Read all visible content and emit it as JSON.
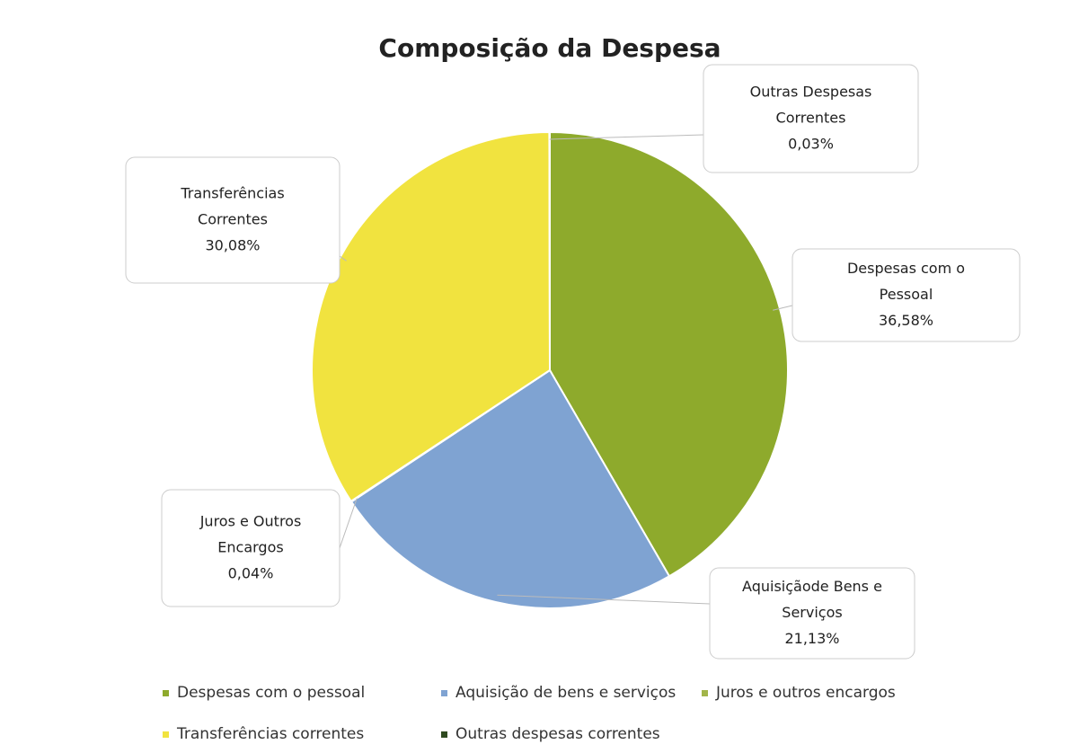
{
  "chart_data": {
    "type": "pie",
    "title": "Composição da Despesa",
    "categories": [
      "Despesas com o pessoal",
      "Aquisição de bens e serviços",
      "Juros e outros encargos",
      "Transferências correntes",
      "Outras despesas correntes"
    ],
    "values": [
      36.58,
      21.13,
      0.04,
      30.08,
      0.03
    ],
    "value_labels": [
      "36,58%",
      "21,13%",
      "0,04%",
      "30,08%",
      "0,03%"
    ],
    "label_names": [
      [
        "Despesas com o",
        "Pessoal"
      ],
      [
        "Aquisiçãode Bens e",
        "Serviços"
      ],
      [
        "Juros e Outros",
        "Encargos"
      ],
      [
        "Transferências",
        "Correntes"
      ],
      [
        "Outras Despesas",
        "Correntes"
      ]
    ],
    "colors": [
      "#8eaa2c",
      "#7fa3d2",
      "#a2b54a",
      "#f1e33f",
      "#2f4a20"
    ],
    "legend": "bottom"
  }
}
